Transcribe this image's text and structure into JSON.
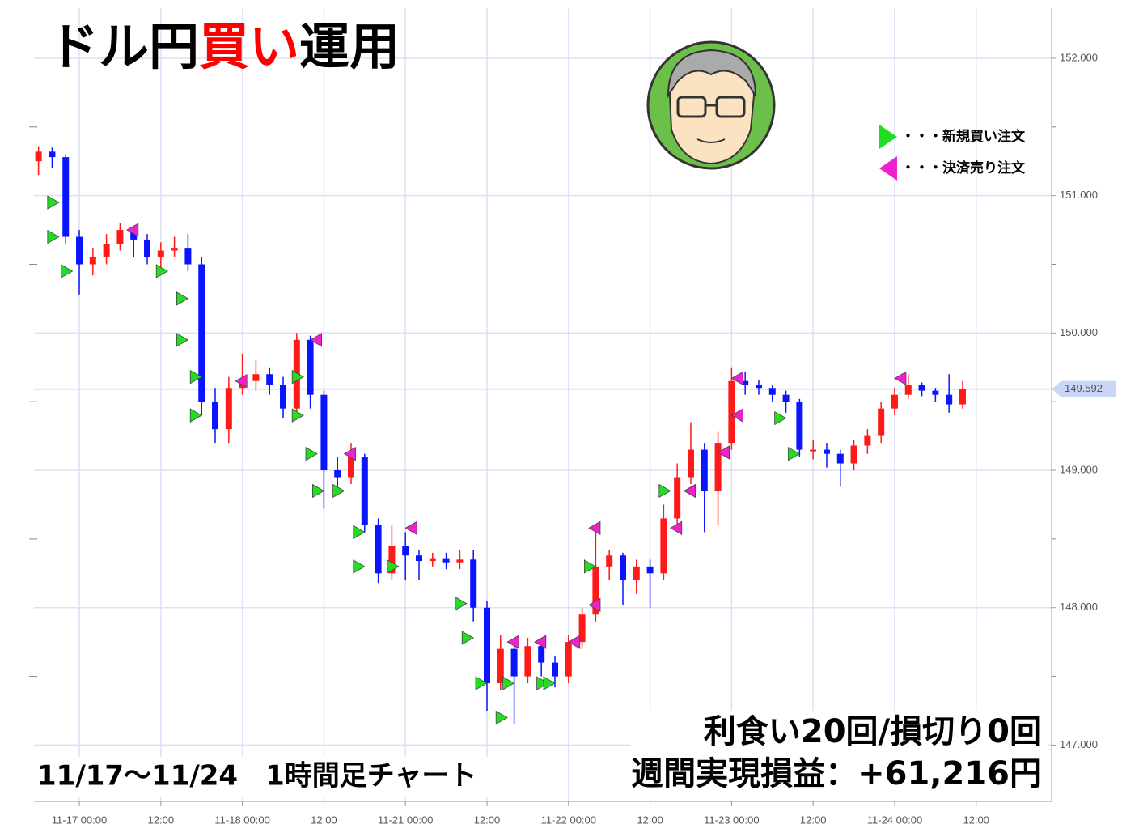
{
  "chart_data": {
    "type": "candlestick",
    "title_parts": [
      "ドル円",
      "買い",
      "運用"
    ],
    "subtitle": "11/17～11/24　1時間足チャート",
    "annotations": [
      "利食い20回/損切り0回",
      "週間実現損益：+61,216円"
    ],
    "legend": [
      {
        "name": "・・・新規買い注文",
        "color": "#22dd22"
      },
      {
        "name": "・・・決済売り注文",
        "color": "#ee22cc"
      }
    ],
    "up_color": "#ff1a1a",
    "down_color": "#0a14ff",
    "x": [
      -6,
      -4,
      -2,
      0,
      2,
      4,
      6,
      8,
      10,
      12,
      14,
      16,
      18,
      20,
      22,
      24,
      26,
      28,
      30,
      32,
      34,
      36,
      38,
      40,
      42,
      44,
      46,
      48,
      50,
      52,
      54,
      56,
      58,
      60,
      62,
      64,
      66,
      68,
      70,
      72,
      74,
      76,
      78,
      80,
      82,
      84,
      86,
      88,
      90,
      92,
      94,
      96,
      98,
      100,
      102,
      104,
      106,
      108,
      110,
      112,
      114,
      116,
      118,
      120,
      122,
      124,
      126,
      128,
      130
    ],
    "open": [
      151.25,
      151.32,
      151.28,
      150.7,
      150.5,
      150.55,
      150.65,
      150.75,
      150.68,
      150.55,
      150.6,
      150.62,
      150.5,
      149.5,
      149.3,
      149.6,
      149.65,
      149.7,
      149.62,
      149.45,
      149.95,
      149.55,
      149.0,
      148.95,
      149.1,
      148.6,
      148.25,
      148.45,
      148.38,
      148.34,
      148.36,
      148.33,
      148.35,
      148.0,
      147.45,
      147.7,
      147.5,
      147.72,
      147.6,
      147.5,
      147.75,
      147.95,
      148.3,
      148.38,
      148.2,
      148.3,
      148.25,
      148.65,
      148.95,
      149.15,
      148.85,
      149.2,
      149.65,
      149.62,
      149.6,
      149.55,
      149.5,
      149.15,
      149.15,
      149.12,
      149.05,
      149.18,
      149.25,
      149.45,
      149.55,
      149.62,
      149.58,
      149.55,
      149.48
    ],
    "high": [
      151.36,
      151.35,
      151.3,
      150.75,
      150.62,
      150.72,
      150.8,
      150.78,
      150.72,
      150.66,
      150.7,
      150.72,
      150.55,
      149.6,
      149.68,
      149.85,
      149.8,
      149.75,
      149.68,
      150.0,
      149.98,
      149.58,
      149.1,
      149.2,
      149.12,
      148.65,
      148.6,
      148.55,
      148.42,
      148.4,
      148.4,
      148.42,
      148.42,
      148.05,
      147.8,
      147.78,
      147.78,
      147.78,
      147.65,
      147.8,
      148.0,
      148.6,
      148.42,
      148.4,
      148.35,
      148.35,
      148.75,
      149.05,
      149.35,
      149.2,
      149.28,
      149.75,
      149.72,
      149.66,
      149.62,
      149.58,
      149.52,
      149.22,
      149.2,
      149.15,
      149.22,
      149.3,
      149.5,
      149.6,
      149.7,
      149.64,
      149.6,
      149.7,
      149.65
    ],
    "low": [
      151.15,
      151.2,
      150.65,
      150.28,
      150.42,
      150.5,
      150.6,
      150.55,
      150.5,
      150.48,
      150.55,
      150.45,
      149.4,
      149.2,
      149.2,
      149.55,
      149.58,
      149.55,
      149.38,
      149.4,
      149.45,
      148.72,
      148.85,
      148.9,
      148.55,
      148.18,
      148.2,
      148.2,
      148.2,
      148.3,
      148.28,
      148.28,
      147.9,
      147.25,
      147.4,
      147.15,
      147.45,
      147.5,
      147.42,
      147.45,
      147.7,
      147.9,
      148.2,
      148.02,
      148.1,
      148.0,
      148.2,
      148.6,
      148.9,
      148.55,
      148.6,
      149.15,
      149.55,
      149.55,
      149.5,
      149.42,
      149.1,
      149.08,
      149.02,
      148.88,
      149.0,
      149.12,
      149.2,
      149.4,
      149.52,
      149.54,
      149.5,
      149.42,
      149.45
    ],
    "close": [
      151.32,
      151.28,
      150.7,
      150.5,
      150.55,
      150.65,
      150.75,
      150.68,
      150.55,
      150.6,
      150.62,
      150.5,
      149.5,
      149.3,
      149.6,
      149.65,
      149.7,
      149.62,
      149.45,
      149.95,
      149.55,
      149.0,
      148.95,
      149.1,
      148.6,
      148.25,
      148.45,
      148.38,
      148.34,
      148.36,
      148.33,
      148.35,
      148.0,
      147.45,
      147.7,
      147.5,
      147.72,
      147.6,
      147.5,
      147.75,
      147.95,
      148.3,
      148.38,
      148.2,
      148.3,
      148.25,
      148.65,
      148.95,
      149.15,
      148.85,
      149.2,
      149.65,
      149.62,
      149.6,
      149.55,
      149.5,
      149.15,
      149.15,
      149.12,
      149.05,
      149.18,
      149.25,
      149.45,
      149.55,
      149.62,
      149.58,
      149.55,
      149.48,
      149.59
    ],
    "buy_signals": {
      "x": [
        -3,
        -3,
        -1,
        13,
        16,
        16,
        18,
        18,
        33,
        33,
        35,
        36,
        39,
        42,
        42,
        47,
        57,
        58,
        60,
        63,
        64,
        69,
        70,
        76,
        87,
        104,
        106
      ],
      "values": [
        150.95,
        150.7,
        150.45,
        150.45,
        150.25,
        149.95,
        149.68,
        149.4,
        149.4,
        149.68,
        149.12,
        148.85,
        148.85,
        148.55,
        148.3,
        148.3,
        148.03,
        147.78,
        147.45,
        147.2,
        147.45,
        147.45,
        147.45,
        148.3,
        148.85,
        149.38,
        149.12
      ]
    },
    "sell_signals": {
      "x": [
        7,
        23,
        34,
        39,
        48,
        63,
        67,
        72,
        75,
        75,
        87,
        89,
        94,
        96,
        96,
        120
      ],
      "values": [
        150.75,
        149.65,
        149.95,
        149.12,
        148.58,
        147.75,
        147.75,
        147.75,
        148.58,
        148.02,
        148.58,
        148.85,
        149.13,
        149.4,
        149.67,
        149.67
      ]
    },
    "current_price": 149.592,
    "xlim": [
      -6.67,
      143.1
    ],
    "xticks": [
      {
        "value": 0,
        "label": "11-17 00:00"
      },
      {
        "value": 12,
        "label": "12:00"
      },
      {
        "value": 24,
        "label": "11-18 00:00"
      },
      {
        "value": 36,
        "label": "12:00"
      },
      {
        "value": 48,
        "label": "11-21 00:00"
      },
      {
        "value": 60,
        "label": "12:00"
      },
      {
        "value": 72,
        "label": "11-22 00:00"
      },
      {
        "value": 84,
        "label": "12:00"
      },
      {
        "value": 96,
        "label": "11-23 00:00"
      },
      {
        "value": 108,
        "label": "12:00"
      },
      {
        "value": 120,
        "label": "11-24 00:00"
      },
      {
        "value": 132,
        "label": "12:00"
      }
    ],
    "ylim": [
      146.59,
      152.365
    ],
    "yticks": [
      {
        "value": 147,
        "label": "147.000"
      },
      {
        "value": 148,
        "label": "148.000"
      },
      {
        "value": 149,
        "label": "149.000"
      },
      {
        "value": 150,
        "label": "150.000"
      },
      {
        "value": 151,
        "label": "151.000"
      },
      {
        "value": 152,
        "label": "152.000"
      }
    ],
    "y_minor_ticks": [
      147.5,
      148.5,
      149.5,
      150.5,
      151.5
    ],
    "grid": true
  }
}
